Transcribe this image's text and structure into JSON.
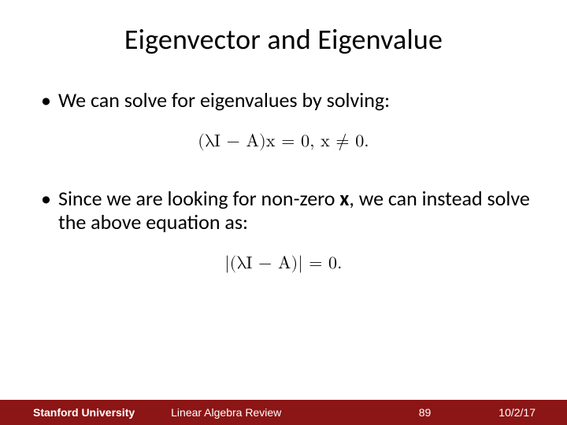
{
  "title": "Eigenvector and Eigenvalue",
  "bullet1": "We can solve for eigenvalues by solving:",
  "equation1": "(λI − A)x = 0,    x ≠ 0.",
  "bullet2_pre": "Since we are looking for non-zero ",
  "bullet2_bold": "x",
  "bullet2_post": ", we can instead solve the above equation as:",
  "equation2": "|(λI − A)| = 0.",
  "footer": {
    "university": "Stanford University",
    "course": "Linear Algebra Review",
    "page": "89",
    "date": "10/2/17"
  },
  "styling": {
    "slide_width": 720,
    "slide_height": 540,
    "title_fontsize": 36,
    "body_fontsize": 26,
    "equation_fontsize": 22,
    "footer_fontsize": 14,
    "background_color": "#ffffff",
    "text_color": "#000000",
    "footer_bg_color": "#8c1515",
    "footer_text_color": "#ffffff",
    "title_font_family": "Calibri",
    "equation_font_family": "Latin Modern Math / serif"
  }
}
